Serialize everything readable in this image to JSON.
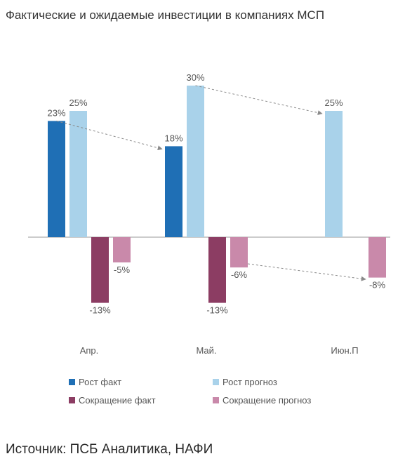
{
  "title": "Фактические и ожидаемые инвестиции в компаниях МСП",
  "source": "Источник: ПСБ Аналитика, НАФИ",
  "colors": {
    "growth_fact": "#1f6fb5",
    "growth_forecast": "#a9d2ea",
    "decline_fact": "#8c3d63",
    "decline_forecast": "#c989aa",
    "axis": "#9a9a9a",
    "arrow": "#8a8a8a",
    "label": "#555555"
  },
  "chart_data": {
    "type": "bar",
    "categories": [
      "Апр.",
      "Май.",
      "Июн.П"
    ],
    "series": [
      {
        "name": "Рост факт",
        "color_key": "growth_fact",
        "values": [
          23,
          18,
          null
        ]
      },
      {
        "name": "Рост прогноз",
        "color_key": "growth_forecast",
        "values": [
          25,
          30,
          25
        ]
      },
      {
        "name": "Сокращение факт",
        "color_key": "decline_fact",
        "values": [
          -13,
          -13,
          null
        ]
      },
      {
        "name": "Сокращение прогноз",
        "color_key": "decline_forecast",
        "values": [
          -5,
          -6,
          -8
        ]
      }
    ],
    "data_labels": {
      "series_0": [
        "23%",
        "18%",
        ""
      ],
      "series_1": [
        "25%",
        "30%",
        "25%"
      ],
      "series_2": [
        "-13%",
        "-13%",
        ""
      ],
      "series_3": [
        "-5%",
        "-6%",
        "-8%"
      ]
    },
    "ylim": [
      -20,
      33
    ],
    "grid": false,
    "legend_position": "bottom",
    "annotations": [
      {
        "from_series": 0,
        "from_category": 0,
        "to_series": 0,
        "to_category": 1,
        "kind": "dashed-arrow"
      },
      {
        "from_series": 1,
        "from_category": 1,
        "to_series": 1,
        "to_category": 2,
        "kind": "dashed-arrow"
      },
      {
        "from_series": 3,
        "from_category": 1,
        "to_series": 3,
        "to_category": 2,
        "kind": "dashed-arrow"
      }
    ]
  }
}
